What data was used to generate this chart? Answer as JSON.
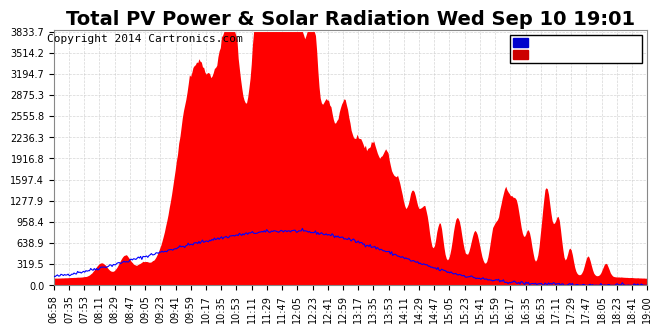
{
  "title": "Total PV Power & Solar Radiation Wed Sep 10 19:01",
  "copyright": "Copyright 2014 Cartronics.com",
  "yticks": [
    0.0,
    319.5,
    638.9,
    958.4,
    1277.9,
    1597.4,
    1916.8,
    2236.3,
    2555.8,
    2875.3,
    3194.7,
    3514.2,
    3833.7
  ],
  "ymax": 3833.7,
  "ymin": 0.0,
  "xtick_labels": [
    "06:58",
    "07:35",
    "07:53",
    "08:11",
    "08:29",
    "08:47",
    "09:05",
    "09:23",
    "09:41",
    "09:59",
    "10:17",
    "10:35",
    "10:53",
    "11:11",
    "11:29",
    "11:47",
    "12:05",
    "12:23",
    "12:41",
    "12:59",
    "13:17",
    "13:35",
    "13:53",
    "14:11",
    "14:29",
    "14:47",
    "15:05",
    "15:23",
    "15:41",
    "15:59",
    "16:17",
    "16:35",
    "16:53",
    "17:11",
    "17:29",
    "17:47",
    "18:05",
    "18:23",
    "18:41",
    "19:00"
  ],
  "legend_radiation_bg": "#0000cc",
  "legend_pv_bg": "#cc0000",
  "bg_color": "#ffffff",
  "plot_bg_color": "#ffffff",
  "grid_color": "#cccccc",
  "title_fontsize": 14,
  "copyright_fontsize": 8,
  "tick_fontsize": 7
}
